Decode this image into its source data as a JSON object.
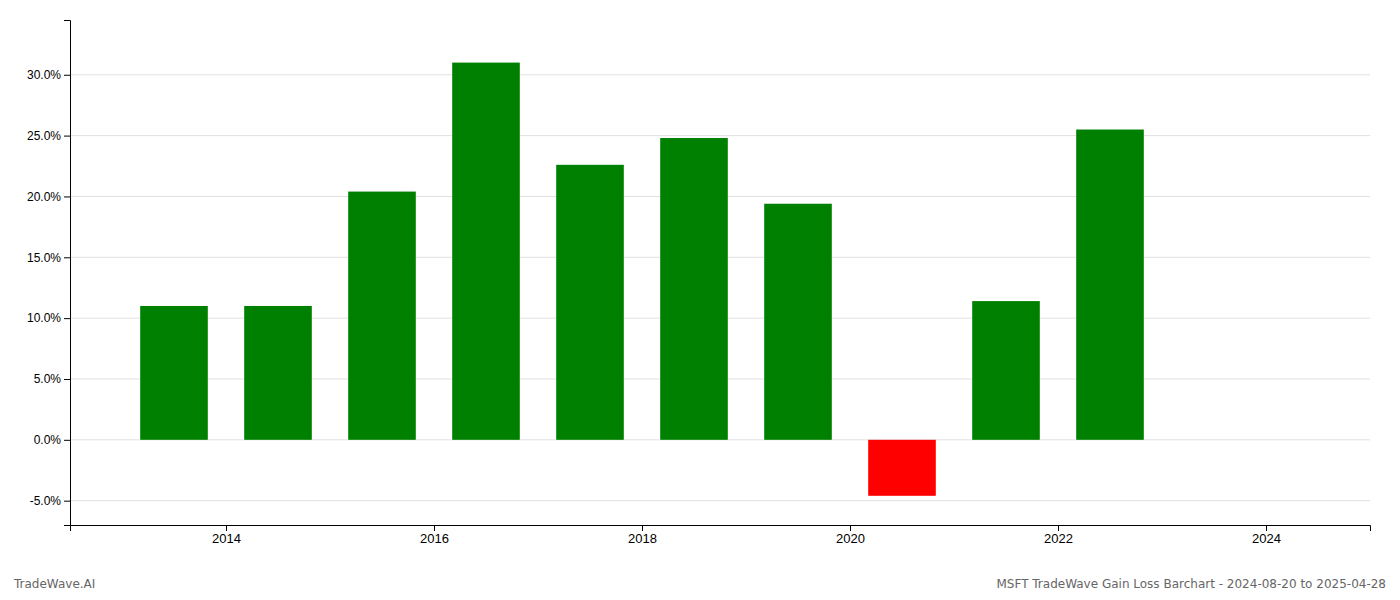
{
  "chart_data": {
    "type": "bar",
    "x": [
      2013.5,
      2014.5,
      2015.5,
      2016.5,
      2017.5,
      2018.5,
      2019.5,
      2020.5,
      2021.5,
      2022.5,
      2023.5
    ],
    "values": [
      0.11,
      0.11,
      0.204,
      0.31,
      0.226,
      0.248,
      0.194,
      -0.046,
      0.114,
      0.255,
      0.0
    ],
    "colors": [
      "#008000",
      "#008000",
      "#008000",
      "#008000",
      "#008000",
      "#008000",
      "#008000",
      "#ff0000",
      "#008000",
      "#008000",
      "#008000"
    ],
    "xlim": [
      2012.5,
      2025.0
    ],
    "xticks": [
      2014,
      2016,
      2018,
      2020,
      2022,
      2024
    ],
    "ylim": [
      -0.07,
      0.345
    ],
    "yticks": [
      {
        "value": -0.05,
        "label": "-5.0%"
      },
      {
        "value": 0.0,
        "label": "0.0%"
      },
      {
        "value": 0.05,
        "label": "5.0%"
      },
      {
        "value": 0.1,
        "label": "10.0%"
      },
      {
        "value": 0.15,
        "label": "15.0%"
      },
      {
        "value": 0.2,
        "label": "20.0%"
      },
      {
        "value": 0.25,
        "label": "25.0%"
      },
      {
        "value": 0.3,
        "label": "30.0%"
      }
    ],
    "grid": true,
    "annotations": [
      "TradeWave.AI",
      "MSFT TradeWave Gain Loss Barchart - 2024-08-20 to 2025-04-28"
    ]
  }
}
